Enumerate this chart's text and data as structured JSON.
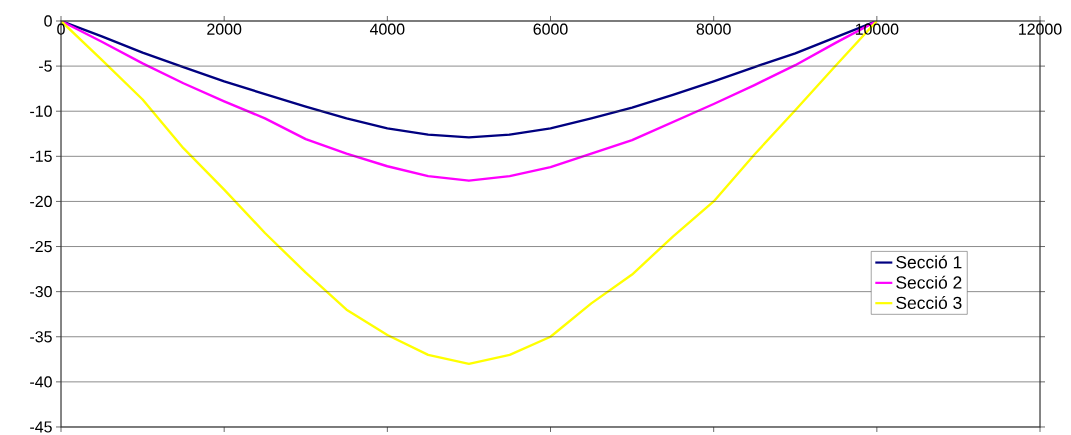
{
  "chart_data": {
    "type": "line",
    "x": [
      0,
      500,
      1000,
      1500,
      2000,
      2500,
      3000,
      3500,
      4000,
      4500,
      5000,
      5500,
      6000,
      6500,
      7000,
      7500,
      8000,
      8500,
      9000,
      9500,
      10000
    ],
    "series": [
      {
        "name": "Secció 1",
        "color": "#000080",
        "values": [
          0,
          -1.7,
          -3.5,
          -5.1,
          -6.7,
          -8.1,
          -9.5,
          -10.8,
          -11.9,
          -12.6,
          -12.9,
          -12.6,
          -11.9,
          -10.8,
          -9.6,
          -8.2,
          -6.7,
          -5.1,
          -3.6,
          -1.8,
          0
        ]
      },
      {
        "name": "Secció 2",
        "color": "#ff00ff",
        "values": [
          0,
          -2.3,
          -4.7,
          -6.9,
          -8.9,
          -10.8,
          -13.1,
          -14.7,
          -16.1,
          -17.2,
          -17.7,
          -17.2,
          -16.2,
          -14.7,
          -13.2,
          -11.2,
          -9.2,
          -7.1,
          -4.9,
          -2.4,
          0
        ]
      },
      {
        "name": "Secció 3",
        "color": "#ffff00",
        "values": [
          0,
          -4.3,
          -8.7,
          -14.1,
          -18.7,
          -23.5,
          -27.9,
          -32.0,
          -34.8,
          -37.0,
          -38.0,
          -37.0,
          -35.0,
          -31.3,
          -28.1,
          -23.9,
          -20.0,
          -14.8,
          -9.9,
          -4.9,
          0
        ]
      }
    ],
    "xlim": [
      0,
      12000
    ],
    "xticks": [
      0,
      2000,
      4000,
      6000,
      8000,
      10000,
      12000
    ],
    "ylim": [
      -45,
      0
    ],
    "yticks": [
      -45,
      -40,
      -35,
      -30,
      -25,
      -20,
      -15,
      -10,
      -5,
      0
    ],
    "grid": "y",
    "legend": "right",
    "marker": "none",
    "line_style": "solid"
  }
}
